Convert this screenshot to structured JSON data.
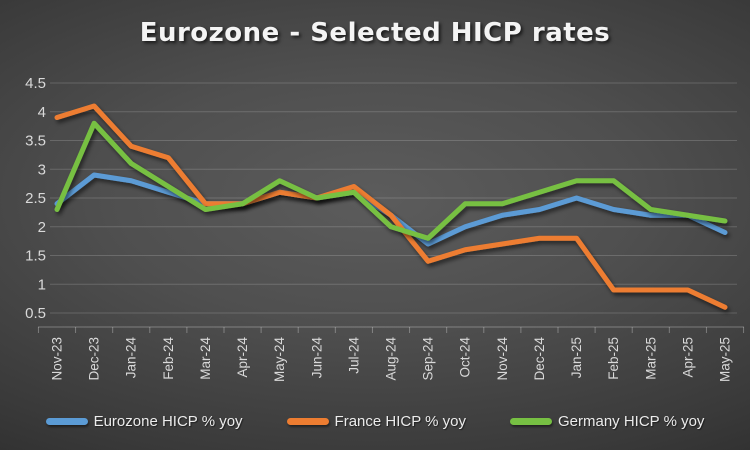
{
  "chart_data": {
    "type": "line",
    "title": "Eurozone - Selected HICP rates",
    "categories": [
      "Nov-23",
      "Dec-23",
      "Jan-24",
      "Feb-24",
      "Mar-24",
      "Apr-24",
      "May-24",
      "Jun-24",
      "Jul-24",
      "Aug-24",
      "Sep-24",
      "Oct-24",
      "Nov-24",
      "Dec-24",
      "Jan-25",
      "Feb-25",
      "Mar-25",
      "Apr-25",
      "May-25"
    ],
    "series": [
      {
        "name": "Eurozone HICP % yoy",
        "color": "#5b9bd5",
        "values": [
          2.4,
          2.9,
          2.8,
          2.6,
          2.4,
          2.4,
          2.6,
          2.5,
          2.6,
          2.2,
          1.7,
          2.0,
          2.2,
          2.3,
          2.5,
          2.3,
          2.2,
          2.2,
          1.9
        ]
      },
      {
        "name": "France HICP % yoy",
        "color": "#ed7d31",
        "values": [
          3.9,
          4.1,
          3.4,
          3.2,
          2.4,
          2.4,
          2.6,
          2.5,
          2.7,
          2.2,
          1.4,
          1.6,
          1.7,
          1.8,
          1.8,
          0.9,
          0.9,
          0.9,
          0.6
        ]
      },
      {
        "name": "Germany HICP % yoy",
        "color": "#77c043",
        "values": [
          2.3,
          3.8,
          3.1,
          2.7,
          2.3,
          2.4,
          2.8,
          2.5,
          2.6,
          2.0,
          1.8,
          2.4,
          2.4,
          2.6,
          2.8,
          2.8,
          2.3,
          2.2,
          2.1
        ]
      }
    ],
    "xlabel": "",
    "ylabel": "",
    "ylim": [
      0.25,
      4.5
    ],
    "yticks": [
      0.5,
      1,
      1.5,
      2,
      2.5,
      3,
      3.5,
      4,
      4.5
    ],
    "ytick_labels": [
      "0.5",
      "1",
      "1.5",
      "2",
      "2.5",
      "3",
      "3.5",
      "4",
      "4.5"
    ],
    "grid": "horizontal",
    "legend_position": "bottom",
    "x_label_rotation": -90
  },
  "style": {
    "grid_color": "rgba(255,255,255,0.17)",
    "axis_color": "rgba(255,255,255,0.30)",
    "tick_label_color": "#d9d9d9"
  }
}
